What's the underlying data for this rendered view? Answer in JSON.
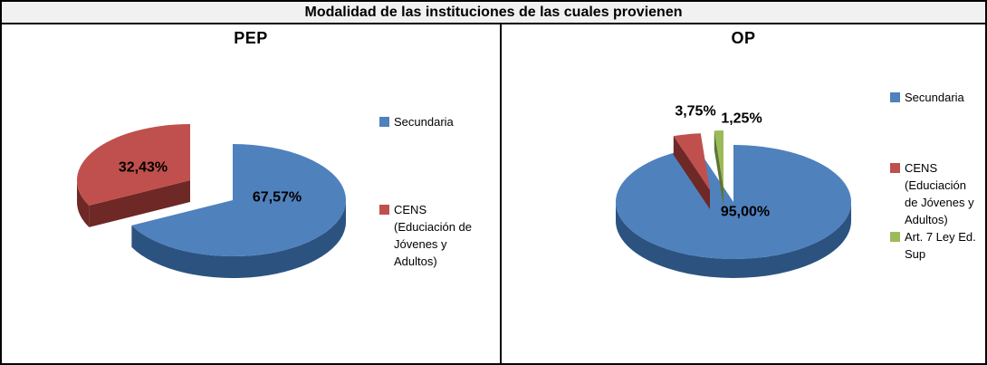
{
  "header": {
    "title": "Modalidad de las instituciones de las cuales provienen"
  },
  "chart_data": [
    {
      "type": "pie",
      "title": "PEP",
      "effect": "3d-exploded",
      "legend_position": "right",
      "slices": [
        {
          "name": "Secundaria",
          "value": 67.57,
          "label": "67,57%",
          "color": "#4F81BD",
          "side_color": "#2C5380",
          "legend_lines": [
            "Secundaria"
          ]
        },
        {
          "name": "CENS (Educiación de Jóvenes y Adultos)",
          "value": 32.43,
          "label": "32,43%",
          "color": "#C0504D",
          "side_color": "#6E2826",
          "legend_lines": [
            "CENS",
            "(Educiación de",
            "Jóvenes y",
            "Adultos)"
          ]
        }
      ]
    },
    {
      "type": "pie",
      "title": "OP",
      "effect": "3d-exploded",
      "legend_position": "right",
      "slices": [
        {
          "name": "Secundaria",
          "value": 95.0,
          "label": "95,00%",
          "color": "#4F81BD",
          "side_color": "#2C5380",
          "legend_lines": [
            "Secundaria"
          ]
        },
        {
          "name": "CENS (Educiación de Jóvenes y Adultos)",
          "value": 3.75,
          "label": "3,75%",
          "color": "#C0504D",
          "side_color": "#6E2826",
          "legend_lines": [
            "CENS",
            "(Educiación",
            "de Jóvenes y",
            "Adultos)"
          ]
        },
        {
          "name": "Art. 7 Ley Ed. Sup",
          "value": 1.25,
          "label": "1,25%",
          "color": "#9BBB59",
          "side_color": "#5F7434",
          "legend_lines": [
            "Art. 7 Ley Ed.",
            "Sup"
          ]
        }
      ]
    }
  ]
}
